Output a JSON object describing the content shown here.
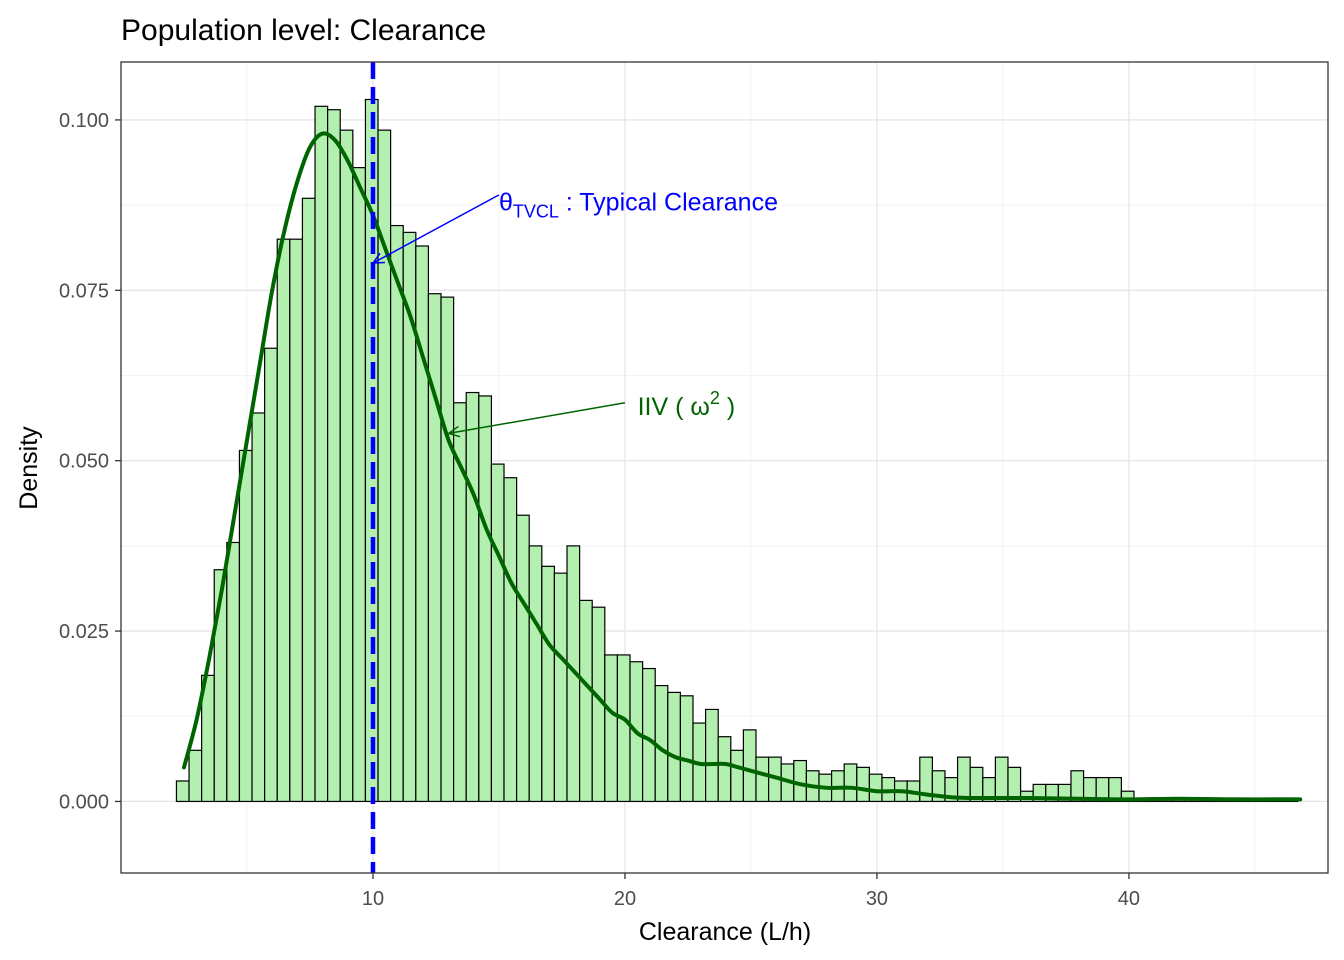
{
  "chart_data": {
    "type": "bar",
    "title": "Population level: Clearance",
    "xlabel": "Clearance (L/h)",
    "ylabel": "Density",
    "xlim": [
      0,
      47.9
    ],
    "ylim": [
      -0.0105,
      0.1085
    ],
    "x_ticks": [
      10,
      20,
      30,
      40
    ],
    "x_tick_labels": [
      "10",
      "20",
      "30",
      "40"
    ],
    "y_ticks": [
      0.0,
      0.025,
      0.05,
      0.075,
      0.1
    ],
    "y_tick_labels": [
      "0.000",
      "0.025",
      "0.050",
      "0.075",
      "0.100"
    ],
    "grid": true,
    "histogram": {
      "bin_start": 2.2,
      "bin_width": 0.5,
      "fill": "#b3f0b0",
      "stroke": "#000000",
      "densities": [
        0.003,
        0.0075,
        0.0185,
        0.034,
        0.038,
        0.0515,
        0.057,
        0.0665,
        0.0825,
        0.0825,
        0.0885,
        0.102,
        0.1015,
        0.0985,
        0.093,
        0.103,
        0.0985,
        0.0845,
        0.0835,
        0.0815,
        0.0745,
        0.074,
        0.0585,
        0.06,
        0.0595,
        0.0495,
        0.0475,
        0.042,
        0.0375,
        0.0345,
        0.0335,
        0.0375,
        0.0295,
        0.0285,
        0.0215,
        0.0215,
        0.0205,
        0.0195,
        0.017,
        0.016,
        0.0155,
        0.0115,
        0.0135,
        0.0095,
        0.0075,
        0.0105,
        0.0065,
        0.0065,
        0.0055,
        0.006,
        0.0045,
        0.004,
        0.0045,
        0.0055,
        0.005,
        0.004,
        0.0035,
        0.003,
        0.003,
        0.0065,
        0.0045,
        0.0035,
        0.0065,
        0.005,
        0.0035,
        0.0065,
        0.005,
        0.0015,
        0.0025,
        0.0025,
        0.0025,
        0.0045,
        0.0035,
        0.0035,
        0.0035,
        0.0015,
        0.0005,
        0.0005,
        0.0005,
        0.0005,
        0.0005,
        0.0005,
        0.0005,
        0.0005,
        0.0005,
        0.0005,
        0.0005,
        0.0005,
        0.0005,
        0.0005,
        0.0005,
        0.0005,
        0.0005,
        0.0005,
        0.0005,
        0.0005,
        0.0005,
        0.0005,
        0.0005,
        0.0005,
        0.0005,
        0.0005,
        0.0005,
        0.0005,
        0.0005,
        0.0005,
        0.0005,
        0.0005,
        0.0005,
        0.0005,
        0.0005,
        0.0005,
        0.0005,
        0.0005,
        0.0005,
        0.0005,
        0.0005,
        0.0005,
        0.0005,
        0.0005,
        0.0005,
        0.0005,
        0.0005,
        0.0005,
        0.0005,
        0.0005,
        0.0005,
        0.0005,
        0.0005,
        0.0005,
        0.0005,
        0.0005,
        0.0005,
        0.0005,
        0.0005,
        0.0005,
        0.0005,
        0.0005,
        0.0005,
        0.0005,
        0.0005,
        0.0005,
        0.0005,
        0.0005,
        0.0005,
        0.0005,
        0.0005,
        0.0005,
        0.0005,
        0.0005,
        0.0005,
        0.0005,
        0.0005,
        0.0005,
        0.0005,
        0.0005,
        0.0005,
        0.0005,
        0.0005,
        0.0005,
        0.0005,
        0.0005,
        0.0005,
        0.0005,
        0.0005,
        0.0005,
        0.0005,
        0.0005,
        0.0005,
        0.0005,
        0.0005,
        0.0005,
        0.0005,
        0.0005,
        0.0005,
        0.0005,
        0.0005,
        0.0005,
        0.0005,
        0.0005,
        0.0005,
        0.0005,
        0.0005,
        0.0005,
        0.0005,
        0.0005,
        0.0005,
        0.0005,
        0.0005,
        0.0005,
        0.0005,
        0.0005,
        0.0005,
        0.0005,
        0.0005,
        0.0005,
        0.0005,
        0.0005,
        0.0005,
        0.0005,
        0.0005,
        0.0005,
        0.0005,
        0.0005,
        0.0005,
        0.0005,
        0.0005,
        0.0005,
        0.0005,
        0.0005,
        0.0005,
        0.0005,
        0.0005,
        0.0005,
        0.0005,
        0.0005,
        0.0005,
        0.0005,
        0.0005,
        0.0005,
        0.0005,
        0.0005,
        0.0005,
        0.0005,
        0.0005,
        0.0005,
        0.0005,
        0.0005,
        0.0005,
        0.0005,
        0.0005,
        0.0005,
        0.0005,
        0.0005,
        0.0005,
        0.0005,
        0.0005,
        0.0005,
        0.0005,
        0.0005,
        0.0005,
        0.0005,
        0.0005,
        0.0005,
        0.0005,
        0.0005,
        0.0005,
        0.0005,
        0.0005,
        0.0005,
        0.0005,
        0.0005,
        0.0005,
        0.0005,
        0.0005,
        0.0005,
        0.0005,
        0.0005,
        0.0005,
        0.0005,
        0.0005,
        0.0005,
        0.0005,
        0.0005,
        0.0005,
        0.0005,
        0.0005,
        0.0005,
        0.0005,
        0.0005,
        0.0005,
        0.0005,
        0.0005,
        0.0005,
        0.0005,
        0.0005,
        0.0005,
        0.0005,
        0.0005,
        0.0005,
        0.0005,
        0.0005,
        0.0005,
        0.0005,
        0.0005,
        0.0005,
        0.0005,
        0.0005,
        0.0005,
        0.0005,
        0.0005,
        0.0005,
        0.0005,
        0.0005,
        0.0005,
        0.0005,
        0.0005,
        0.0005,
        0.0005,
        0.0005,
        0.0005,
        0.0005,
        0.0005,
        0.0005,
        0.0005,
        0.0005,
        0.0005,
        0.0005,
        0.0005,
        0.0005,
        0.0005,
        0.0005,
        0.0005,
        0.0005,
        0.0005,
        0.0005,
        0.0005,
        0.0005
      ]
    },
    "density_curve": {
      "color": "#006400",
      "x": [
        2.5,
        3.0,
        3.5,
        4.0,
        4.5,
        5.0,
        5.5,
        6.0,
        6.5,
        7.0,
        7.5,
        8.0,
        8.5,
        9.0,
        9.5,
        10.0,
        10.5,
        11.0,
        11.5,
        12.0,
        12.5,
        13.0,
        13.5,
        14.0,
        14.5,
        15.0,
        15.5,
        16.0,
        16.5,
        17.0,
        17.5,
        18.0,
        18.5,
        19.0,
        19.5,
        20.0,
        20.5,
        21.0,
        21.5,
        22.0,
        22.5,
        23.0,
        23.5,
        24.0,
        24.5,
        25.0,
        26.0,
        27.0,
        28.0,
        29.0,
        30.0,
        31.0,
        32.0,
        33.0,
        34.0,
        36.0,
        38.0,
        40.0,
        42.0,
        44.0,
        46.8
      ],
      "y": [
        0.005,
        0.012,
        0.021,
        0.031,
        0.042,
        0.053,
        0.064,
        0.075,
        0.084,
        0.091,
        0.096,
        0.098,
        0.097,
        0.094,
        0.09,
        0.086,
        0.081,
        0.076,
        0.071,
        0.065,
        0.059,
        0.053,
        0.049,
        0.045,
        0.04,
        0.036,
        0.032,
        0.029,
        0.026,
        0.023,
        0.021,
        0.019,
        0.017,
        0.015,
        0.013,
        0.012,
        0.01,
        0.009,
        0.0075,
        0.0065,
        0.006,
        0.0055,
        0.0055,
        0.0055,
        0.005,
        0.0045,
        0.0035,
        0.0025,
        0.002,
        0.002,
        0.0015,
        0.0015,
        0.001,
        0.0006,
        0.0005,
        0.0005,
        0.0004,
        0.0003,
        0.0004,
        0.0003,
        0.0003
      ]
    },
    "vline": {
      "x": 10,
      "color": "#0000ff"
    },
    "annotations": [
      {
        "symbol": "θ",
        "subscript": "TVCL",
        "text": " : Typical Clearance",
        "color": "#0000ff",
        "text_x": 15,
        "text_y": 0.088,
        "arrow_from": [
          15,
          0.089
        ],
        "arrow_to": [
          10,
          0.079
        ]
      },
      {
        "prefix": "IIV ( ",
        "symbol": "ω",
        "superscript": "2",
        "suffix": " )",
        "color": "#006400",
        "text_x": 20.5,
        "text_y": 0.058,
        "arrow_from": [
          20,
          0.0585
        ],
        "arrow_to": [
          13,
          0.054
        ]
      }
    ]
  }
}
